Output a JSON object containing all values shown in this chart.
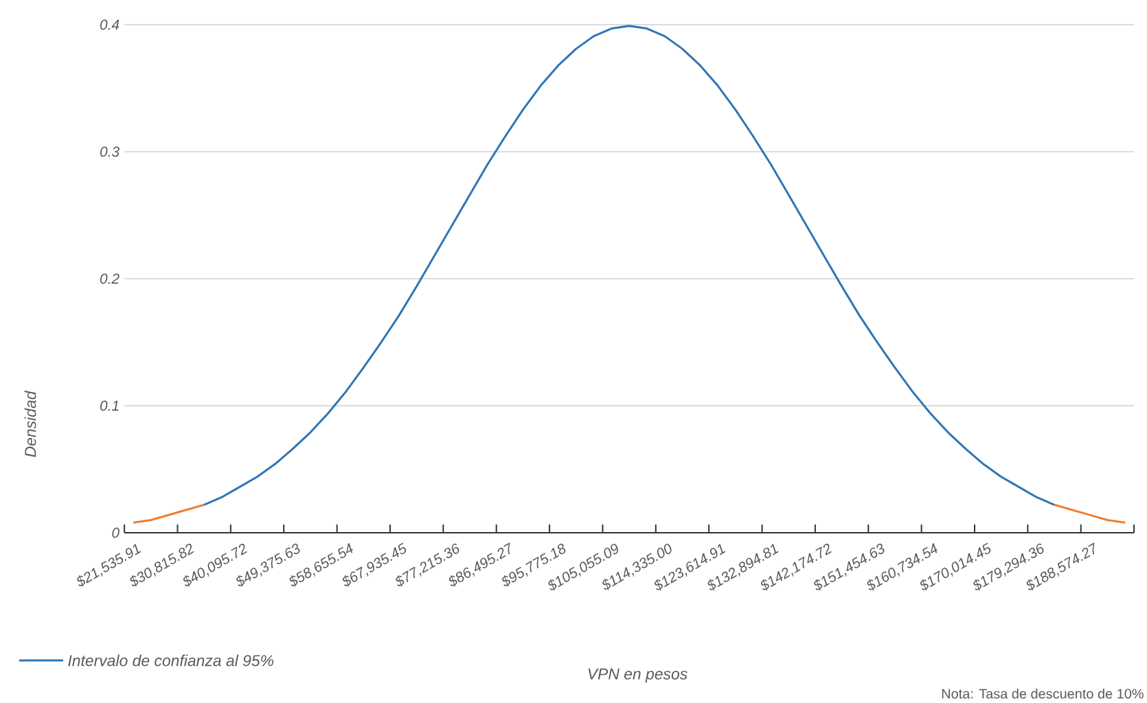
{
  "chart_data": {
    "type": "line",
    "xlabel": "VPN en pesos",
    "ylabel": "Densidad",
    "annotations": [
      "Nota: Tasa de descuento de 10%"
    ],
    "categories": [
      "$21,535.91",
      null,
      null,
      "$30,815.82",
      null,
      null,
      "$40,095.72",
      null,
      null,
      "$49,375.63",
      null,
      null,
      "$58,655.54",
      null,
      null,
      "$67,935.45",
      null,
      null,
      "$77,215.36",
      null,
      null,
      "$86,495.27",
      null,
      null,
      "$95,775.18",
      null,
      null,
      "$105,055.09",
      null,
      null,
      "$114,335.00",
      null,
      null,
      "$123,614.91",
      null,
      null,
      "$132,894.81",
      null,
      null,
      "$142,174.72",
      null,
      null,
      "$151,454.63",
      null,
      null,
      "$160,734.54",
      null,
      null,
      "$170,014.45",
      null,
      null,
      "$179,294.36",
      null,
      null,
      "$188,574.27",
      null,
      null
    ],
    "series": [
      {
        "name": "Intervalo de confianza al 95%",
        "color": "#2e75b6",
        "values": [
          null,
          null,
          null,
          null,
          0.022,
          0.028,
          0.036,
          0.044,
          0.054,
          0.066,
          0.079,
          0.094,
          0.111,
          0.13,
          0.15,
          0.171,
          0.194,
          0.218,
          0.242,
          0.266,
          0.29,
          0.312,
          0.333,
          0.352,
          0.368,
          0.381,
          0.391,
          0.397,
          0.399,
          0.397,
          0.391,
          0.381,
          0.368,
          0.352,
          0.333,
          0.312,
          0.29,
          0.266,
          0.242,
          0.218,
          0.194,
          0.171,
          0.15,
          0.13,
          0.111,
          0.094,
          0.079,
          0.066,
          0.054,
          0.044,
          0.036,
          0.028,
          0.022,
          null,
          null,
          null,
          null
        ]
      },
      {
        "color": "#ed7d31",
        "values": [
          0.008,
          0.01,
          0.014,
          0.018,
          0.022,
          null,
          null,
          null,
          null,
          null,
          null,
          null,
          null,
          null,
          null,
          null,
          null,
          null,
          null,
          null,
          null,
          null,
          null,
          null,
          null,
          null,
          null,
          null,
          null,
          null,
          null,
          null,
          null,
          null,
          null,
          null,
          null,
          null,
          null,
          null,
          null,
          null,
          null,
          null,
          null,
          null,
          null,
          null,
          null,
          null,
          null,
          null,
          0.022,
          0.018,
          0.014,
          0.01,
          0.008
        ]
      }
    ],
    "ylim": [
      0,
      0.4
    ],
    "yticks": [
      0,
      0.1,
      0.2,
      0.3,
      0.4
    ],
    "grid": "y",
    "legend": "bottom left",
    "marker": "none",
    "line_style": "solid"
  }
}
